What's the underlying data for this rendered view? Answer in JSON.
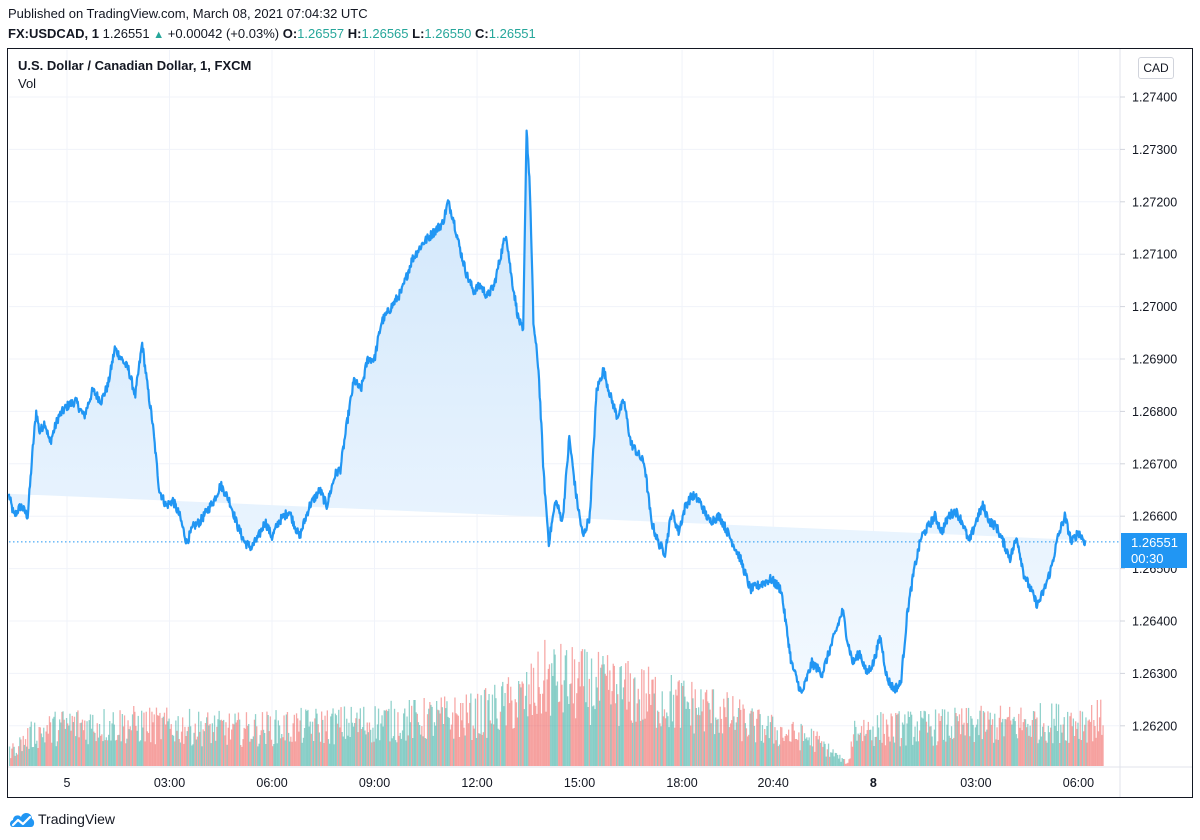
{
  "header": {
    "published": "Published on TradingView.com, March 08, 2021 07:04:32 UTC",
    "symbol": "FX:USDCAD, 1",
    "last": "1.26551",
    "direction_icon": "triangle-up-icon",
    "change": "+0.00042 (+0.03%)",
    "o_label": "O:",
    "o": "1.26557",
    "h_label": "H:",
    "h": "1.26565",
    "l_label": "L:",
    "l": "1.26550",
    "c_label": "C:",
    "c": "1.26551"
  },
  "legend": {
    "title": "U.S. Dollar / Canadian Dollar, 1, FXCM",
    "study": "Vol"
  },
  "currency_button": "CAD",
  "price_label": {
    "price": "1.26551",
    "countdown": "00:30"
  },
  "footer": {
    "brand": "TradingView",
    "logo_icon": "tradingview-cloud-icon"
  },
  "colors": {
    "line": "#2196f3",
    "area_top": "#cfe6fb",
    "area_bottom": "#f3f9ff",
    "vol_up": "#26a69a",
    "vol_down": "#ef5350",
    "grid": "#f0f3fa",
    "axis_text": "#131722",
    "last_price": "#2196f3"
  },
  "chart_data": {
    "type": "area",
    "title": "U.S. Dollar / Canadian Dollar, 1, FXCM",
    "interval": "1 minute",
    "xlabel": "",
    "ylabel": "",
    "ylim": [
      1.261,
      1.275
    ],
    "y_ticks": [
      "1.27400",
      "1.27300",
      "1.27200",
      "1.27100",
      "1.27000",
      "1.26900",
      "1.26800",
      "1.26700",
      "1.26600",
      "1.26500",
      "1.26400",
      "1.26300",
      "1.26200"
    ],
    "x_ticks": [
      {
        "label": "5",
        "hours": 1.0,
        "bold": false
      },
      {
        "label": "03:00",
        "hours": 4.0,
        "bold": false
      },
      {
        "label": "06:00",
        "hours": 7.0,
        "bold": false
      },
      {
        "label": "09:00",
        "hours": 10.0,
        "bold": false
      },
      {
        "label": "12:00",
        "hours": 13.0,
        "bold": false
      },
      {
        "label": "15:00",
        "hours": 16.0,
        "bold": false
      },
      {
        "label": "18:00",
        "hours": 19.0,
        "bold": false
      },
      {
        "label": "20:40",
        "hours": 21.667,
        "bold": false
      },
      {
        "label": "8",
        "hours": 24.6,
        "bold": true
      },
      {
        "label": "03:00",
        "hours": 27.6,
        "bold": false
      },
      {
        "label": "06:00",
        "hours": 30.6,
        "bold": false
      }
    ],
    "x_range_hours": [
      -0.7,
      31.8
    ],
    "grid": true,
    "last_price": 1.26551,
    "price_series": {
      "name": "USDCAD close",
      "hours": [
        -0.7,
        -0.55,
        -0.35,
        -0.15,
        0.0,
        0.1,
        0.2,
        0.35,
        0.5,
        0.75,
        1.0,
        1.25,
        1.5,
        1.75,
        2.0,
        2.2,
        2.4,
        2.6,
        2.8,
        3.0,
        3.2,
        3.35,
        3.5,
        3.7,
        3.9,
        4.1,
        4.3,
        4.5,
        4.7,
        4.9,
        5.1,
        5.3,
        5.5,
        5.75,
        6.0,
        6.2,
        6.4,
        6.6,
        6.8,
        7.0,
        7.2,
        7.5,
        7.8,
        8.1,
        8.4,
        8.6,
        8.85,
        9.0,
        9.2,
        9.4,
        9.6,
        9.8,
        10.0,
        10.2,
        10.5,
        10.8,
        11.1,
        11.4,
        11.7,
        12.0,
        12.15,
        12.3,
        12.5,
        12.7,
        12.9,
        13.1,
        13.3,
        13.5,
        13.7,
        13.85,
        14.0,
        14.2,
        14.35,
        14.45,
        14.55,
        14.65,
        14.8,
        14.95,
        15.1,
        15.3,
        15.5,
        15.7,
        15.9,
        16.1,
        16.3,
        16.5,
        16.7,
        16.9,
        17.1,
        17.3,
        17.5,
        17.7,
        17.9,
        18.1,
        18.3,
        18.5,
        18.7,
        18.9,
        19.1,
        19.3,
        19.5,
        19.8,
        20.1,
        20.4,
        20.7,
        21.0,
        21.3,
        21.6,
        21.9,
        22.2,
        22.5,
        22.8,
        23.1,
        23.4,
        23.7,
        23.85,
        24.0,
        24.2,
        24.4,
        24.6,
        24.8,
        25.0,
        25.2,
        25.4,
        25.6,
        25.8,
        26.0,
        26.2,
        26.4,
        26.6,
        26.8,
        27.0,
        27.2,
        27.4,
        27.6,
        27.8,
        28.0,
        28.2,
        28.4,
        28.6,
        28.8,
        29.0,
        29.2,
        29.4,
        29.6,
        29.8,
        30.0,
        30.2,
        30.4,
        30.6,
        30.8,
        31.0,
        31.15,
        31.3
      ],
      "prices": [
        1.2664,
        1.266,
        1.2662,
        1.266,
        1.2673,
        1.268,
        1.2676,
        1.2678,
        1.2674,
        1.2679,
        1.2681,
        1.2682,
        1.2679,
        1.2684,
        1.2682,
        1.2685,
        1.2692,
        1.269,
        1.2688,
        1.2683,
        1.2693,
        1.2685,
        1.2678,
        1.2665,
        1.2662,
        1.2663,
        1.266,
        1.2655,
        1.2658,
        1.2659,
        1.2661,
        1.2663,
        1.2666,
        1.2663,
        1.2658,
        1.2655,
        1.2654,
        1.2656,
        1.2659,
        1.2656,
        1.2659,
        1.2661,
        1.2656,
        1.2662,
        1.2665,
        1.2662,
        1.2668,
        1.2669,
        1.2678,
        1.2686,
        1.2684,
        1.269,
        1.269,
        1.2697,
        1.27,
        1.2703,
        1.2709,
        1.2712,
        1.2714,
        1.2716,
        1.272,
        1.2717,
        1.2711,
        1.2706,
        1.2703,
        1.2704,
        1.2702,
        1.2704,
        1.271,
        1.2714,
        1.2706,
        1.2698,
        1.2695,
        1.2734,
        1.2722,
        1.2697,
        1.2688,
        1.2668,
        1.2655,
        1.2663,
        1.2659,
        1.2675,
        1.2664,
        1.2656,
        1.266,
        1.2684,
        1.2688,
        1.2683,
        1.2679,
        1.2682,
        1.2674,
        1.2672,
        1.267,
        1.2659,
        1.2655,
        1.2653,
        1.2661,
        1.2657,
        1.2662,
        1.2664,
        1.2663,
        1.2659,
        1.266,
        1.2656,
        1.2652,
        1.2646,
        1.2647,
        1.2648,
        1.2646,
        1.2632,
        1.2626,
        1.2632,
        1.263,
        1.2636,
        1.2642,
        1.2636,
        1.2632,
        1.2634,
        1.263,
        1.2632,
        1.2637,
        1.2629,
        1.2627,
        1.2628,
        1.2642,
        1.265,
        1.2656,
        1.2658,
        1.266,
        1.2657,
        1.266,
        1.2661,
        1.2659,
        1.2655,
        1.2659,
        1.2662,
        1.2659,
        1.2658,
        1.2655,
        1.2652,
        1.2656,
        1.2649,
        1.2646,
        1.2643,
        1.2646,
        1.265,
        1.2656,
        1.266,
        1.2655,
        1.2657,
        1.2655
      ]
    },
    "volume_series": {
      "name": "Vol",
      "profile_hours": [
        -0.7,
        0.0,
        1.0,
        3.0,
        6.0,
        9.0,
        11.0,
        13.0,
        14.5,
        15.0,
        16.5,
        18.0,
        20.0,
        21.0,
        22.0,
        22.8,
        23.85,
        24.0,
        26.0,
        28.0,
        30.0,
        31.3
      ],
      "relative_level": [
        0.15,
        0.35,
        0.45,
        0.45,
        0.4,
        0.45,
        0.5,
        0.55,
        0.75,
        0.95,
        0.85,
        0.75,
        0.6,
        0.45,
        0.35,
        0.3,
        0.02,
        0.4,
        0.42,
        0.45,
        0.48,
        0.5
      ]
    }
  }
}
